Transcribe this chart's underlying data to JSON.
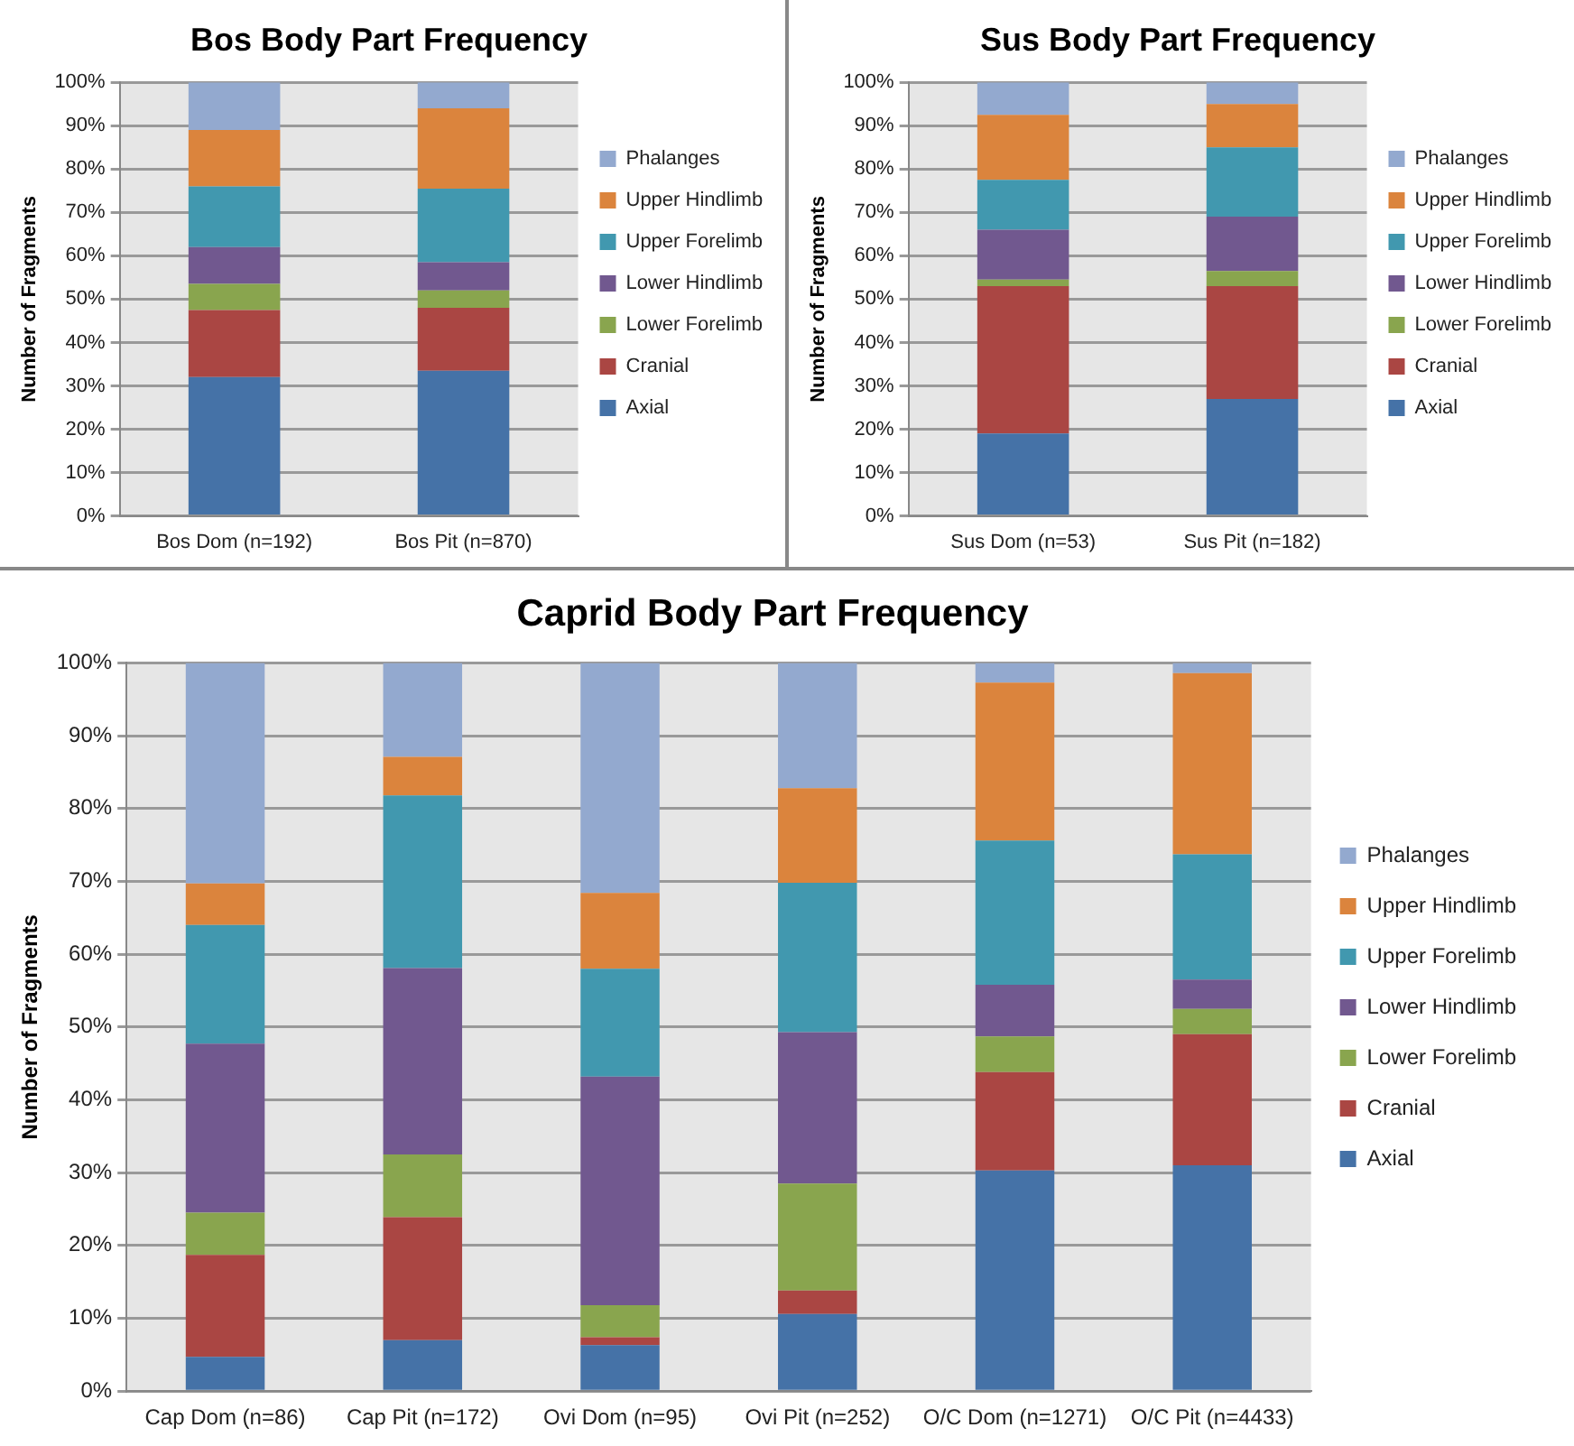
{
  "chart_data": [
    {
      "type": "bar",
      "stacked": true,
      "title": "Bos Body Part Frequency",
      "ylabel": "Number of Fragments",
      "categories": [
        "Bos Dom (n=192)",
        "Bos Pit (n=870)"
      ],
      "ylim": [
        0,
        100
      ],
      "yticks": [
        {
          "value": 0,
          "label": "0%"
        },
        {
          "value": 10,
          "label": "10%"
        },
        {
          "value": 20,
          "label": "20%"
        },
        {
          "value": 30,
          "label": "30%"
        },
        {
          "value": 40,
          "label": "40%"
        },
        {
          "value": 50,
          "label": "50%"
        },
        {
          "value": 60,
          "label": "60%"
        },
        {
          "value": 70,
          "label": "70%"
        },
        {
          "value": 80,
          "label": "80%"
        },
        {
          "value": 90,
          "label": "90%"
        },
        {
          "value": 100,
          "label": "100%"
        }
      ],
      "grid": "y",
      "legend": "right",
      "series": [
        {
          "name": "Axial",
          "color": "#4572a7",
          "values": [
            32,
            33.5
          ]
        },
        {
          "name": "Cranial",
          "color": "#aa4643",
          "values": [
            15.5,
            14.5
          ]
        },
        {
          "name": "Lower Forelimb",
          "color": "#89a54e",
          "values": [
            6,
            4
          ]
        },
        {
          "name": "Lower Hindlimb",
          "color": "#71588f",
          "values": [
            8.5,
            6.5
          ]
        },
        {
          "name": "Upper Forelimb",
          "color": "#4198af",
          "values": [
            14,
            17
          ]
        },
        {
          "name": "Upper Hindlimb",
          "color": "#db843d",
          "values": [
            13,
            18.5
          ]
        },
        {
          "name": "Phalanges",
          "color": "#93a9cf",
          "values": [
            11,
            6
          ]
        }
      ]
    },
    {
      "type": "bar",
      "stacked": true,
      "title": "Sus Body Part Frequency",
      "ylabel": "Number of Fragments",
      "categories": [
        "Sus Dom (n=53)",
        "Sus Pit (n=182)"
      ],
      "ylim": [
        0,
        100
      ],
      "yticks": [
        {
          "value": 0,
          "label": "0%"
        },
        {
          "value": 10,
          "label": "10%"
        },
        {
          "value": 20,
          "label": "20%"
        },
        {
          "value": 30,
          "label": "30%"
        },
        {
          "value": 40,
          "label": "40%"
        },
        {
          "value": 50,
          "label": "50%"
        },
        {
          "value": 60,
          "label": "60%"
        },
        {
          "value": 70,
          "label": "70%"
        },
        {
          "value": 80,
          "label": "80%"
        },
        {
          "value": 90,
          "label": "90%"
        },
        {
          "value": 100,
          "label": "100%"
        }
      ],
      "grid": "y",
      "legend": "right",
      "series": [
        {
          "name": "Axial",
          "color": "#4572a7",
          "values": [
            19,
            27
          ]
        },
        {
          "name": "Cranial",
          "color": "#aa4643",
          "values": [
            34,
            26
          ]
        },
        {
          "name": "Lower Forelimb",
          "color": "#89a54e",
          "values": [
            1.5,
            3.5
          ]
        },
        {
          "name": "Lower Hindlimb",
          "color": "#71588f",
          "values": [
            11.5,
            12.5
          ]
        },
        {
          "name": "Upper Forelimb",
          "color": "#4198af",
          "values": [
            11.5,
            16
          ]
        },
        {
          "name": "Upper Hindlimb",
          "color": "#db843d",
          "values": [
            15,
            10
          ]
        },
        {
          "name": "Phalanges",
          "color": "#93a9cf",
          "values": [
            7.5,
            5
          ]
        }
      ]
    },
    {
      "type": "bar",
      "stacked": true,
      "title": "Caprid Body Part Frequency",
      "ylabel": "Number of Fragments",
      "categories": [
        "Cap Dom (n=86)",
        "Cap Pit (n=172)",
        "Ovi Dom (n=95)",
        "Ovi Pit (n=252)",
        "O/C Dom (n=1271)",
        "O/C Pit (n=4433)"
      ],
      "ylim": [
        0,
        100
      ],
      "yticks": [
        {
          "value": 0,
          "label": "0%"
        },
        {
          "value": 10,
          "label": "10%"
        },
        {
          "value": 20,
          "label": "20%"
        },
        {
          "value": 30,
          "label": "30%"
        },
        {
          "value": 40,
          "label": "40%"
        },
        {
          "value": 50,
          "label": "50%"
        },
        {
          "value": 60,
          "label": "60%"
        },
        {
          "value": 70,
          "label": "70%"
        },
        {
          "value": 80,
          "label": "80%"
        },
        {
          "value": 90,
          "label": "90%"
        },
        {
          "value": 100,
          "label": "100%"
        }
      ],
      "grid": "y",
      "legend": "right",
      "series": [
        {
          "name": "Axial",
          "color": "#4572a7",
          "values": [
            4.7,
            7,
            6.3,
            10.6,
            30.3,
            31
          ]
        },
        {
          "name": "Cranial",
          "color": "#aa4643",
          "values": [
            14,
            16.9,
            1.1,
            3.2,
            13.5,
            18
          ]
        },
        {
          "name": "Lower Forelimb",
          "color": "#89a54e",
          "values": [
            5.8,
            8.6,
            4.4,
            14.7,
            4.9,
            3.5
          ]
        },
        {
          "name": "Lower Hindlimb",
          "color": "#71588f",
          "values": [
            23.2,
            25.6,
            31.4,
            20.8,
            7.1,
            4
          ]
        },
        {
          "name": "Upper Forelimb",
          "color": "#4198af",
          "values": [
            16.3,
            23.7,
            14.8,
            20.5,
            19.8,
            17.2
          ]
        },
        {
          "name": "Upper Hindlimb",
          "color": "#db843d",
          "values": [
            5.7,
            5.3,
            10.4,
            13,
            21.7,
            24.9
          ]
        },
        {
          "name": "Phalanges",
          "color": "#93a9cf",
          "values": [
            30.3,
            12.9,
            31.6,
            17.2,
            2.7,
            1.4
          ]
        }
      ]
    }
  ]
}
